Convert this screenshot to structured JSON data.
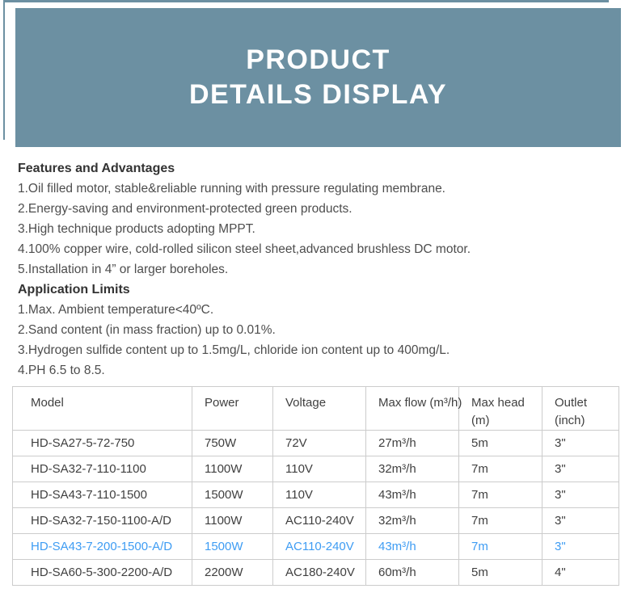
{
  "colors": {
    "banner_bg": "#6c90a2",
    "highlight_blue": "#3e9cf3",
    "table_border": "#cccccc",
    "heading_text": "#333333",
    "body_text": "#4d4d4d",
    "table_text": "#404040",
    "banner_text": "#ffffff"
  },
  "banner": {
    "line1": "PRODUCT",
    "line2": "DETAILS DISPLAY"
  },
  "sections": [
    {
      "heading": "Features and Advantages",
      "items": [
        "1.Oil filled motor, stable&reliable running with pressure regulating membrane.",
        "2.Energy-saving and environment-protected green products.",
        "3.High technique products adopting MPPT.",
        "4.100% copper wire, cold-rolled silicon steel sheet,advanced brushless DC motor.",
        "5.Installation in 4” or larger boreholes."
      ]
    },
    {
      "heading": "Application Limits",
      "items": [
        "1.Max. Ambient temperature<40ºC.",
        "2.Sand content (in mass fraction) up to 0.01%.",
        "3.Hydrogen sulfide content up to 1.5mg/L, chloride ion content up to 400mg/L.",
        "4.PH 6.5 to 8.5."
      ]
    }
  ],
  "table": {
    "columns": [
      "Model",
      "Power",
      "Voltage",
      "Max flow (m³/h)",
      "Max head (m)",
      "Outlet (inch)"
    ],
    "rows": [
      {
        "highlighted": false,
        "cells": [
          "HD-SA27-5-72-750",
          "750W",
          "72V",
          "27m³/h",
          "5m",
          "3\""
        ]
      },
      {
        "highlighted": false,
        "cells": [
          "HD-SA32-7-110-1100",
          "1100W",
          "110V",
          "32m³/h",
          "7m",
          "3\""
        ]
      },
      {
        "highlighted": false,
        "cells": [
          "HD-SA43-7-110-1500",
          "1500W",
          "110V",
          "43m³/h",
          "7m",
          "3\""
        ]
      },
      {
        "highlighted": false,
        "cells": [
          "HD-SA32-7-150-1100-A/D",
          "1100W",
          "AC110-240V",
          "32m³/h",
          "7m",
          "3\""
        ]
      },
      {
        "highlighted": true,
        "cells": [
          "HD-SA43-7-200-1500-A/D",
          "1500W",
          "AC110-240V",
          "43m³/h",
          "7m",
          "3\""
        ]
      },
      {
        "highlighted": false,
        "cells": [
          "HD-SA60-5-300-2200-A/D",
          "2200W",
          "AC180-240V",
          "60m³/h",
          "5m",
          "4\""
        ]
      }
    ]
  }
}
